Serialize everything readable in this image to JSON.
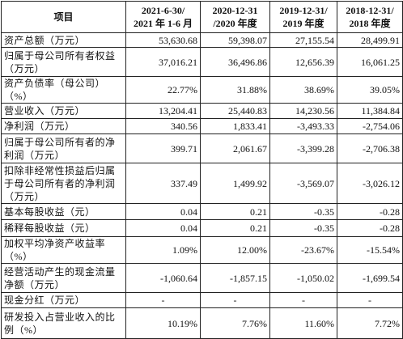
{
  "table": {
    "header": [
      "项目",
      "2021-6-30/\n2021 年 1-6 月",
      "2020-12-31\n/2020 年度",
      "2019-12-31/\n2019 年度",
      "2018-12-31/\n2018 年度"
    ],
    "rows": [
      [
        "资产总额（万元）",
        "53,630.68",
        "59,398.07",
        "27,155.54",
        "28,499.91"
      ],
      [
        "归属于母公司所有者权益（万元）",
        "37,016.21",
        "36,496.86",
        "12,656.39",
        "16,061.25"
      ],
      [
        "资产负债率（母公司）（%）",
        "22.77%",
        "31.88%",
        "38.69%",
        "39.05%"
      ],
      [
        "营业收入（万元）",
        "13,204.41",
        "25,440.83",
        "14,230.56",
        "11,384.84"
      ],
      [
        "净利润（万元）",
        "340.56",
        "1,833.41",
        "-3,493.33",
        "-2,754.06"
      ],
      [
        "归属于母公司所有者的净利润（万元）",
        "399.71",
        "2,061.67",
        "-3,399.28",
        "-2,706.38"
      ],
      [
        "扣除非经常性损益后归属于母公司所有者的净利润（万元）",
        "337.49",
        "1,499.92",
        "-3,569.07",
        "-3,026.12"
      ],
      [
        "基本每股收益（元）",
        "0.04",
        "0.21",
        "-0.35",
        "-0.28"
      ],
      [
        "稀释每股收益（元）",
        "0.04",
        "0.21",
        "-0.35",
        "-0.28"
      ],
      [
        "加权平均净资产收益率（%）",
        "1.09%",
        "12.00%",
        "-23.67%",
        "-15.54%"
      ],
      [
        "经营活动产生的现金流量净额（万元）",
        "-1,060.64",
        "-1,857.15",
        "-1,050.02",
        "-1,699.54"
      ],
      [
        "现金分红（万元）",
        "-",
        "-",
        "-",
        "-"
      ],
      [
        "研发投入占营业收入的比例（%）",
        "10.19%",
        "7.76%",
        "11.60%",
        "7.72%"
      ]
    ]
  }
}
